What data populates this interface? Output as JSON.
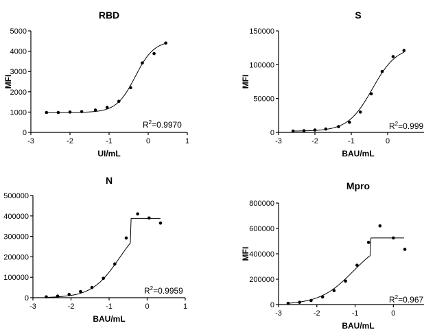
{
  "chart_data": [
    {
      "type": "scatter",
      "title": "RBD",
      "xlabel": "UI/mL",
      "ylabel": "MFI",
      "xlim": [
        -3,
        1
      ],
      "ylim": [
        0,
        5000
      ],
      "xticks": [
        -3,
        -2,
        -1,
        0,
        1
      ],
      "yticks": [
        0,
        1000,
        2000,
        3000,
        4000,
        5000
      ],
      "xtick_labels": [
        "-3",
        "-2",
        "-1",
        "0",
        "1"
      ],
      "ytick_labels": [
        "0",
        "1000",
        "2000",
        "3000",
        "4000",
        "5000"
      ],
      "annotation": {
        "prefix": "R",
        "superscript": "2",
        "text": "=0.9970"
      },
      "series": [
        {
          "x": [
            -2.6,
            -2.3,
            -2.0,
            -1.7,
            -1.35,
            -1.05,
            -0.75,
            -0.45,
            -0.15,
            0.15,
            0.45
          ],
          "y": [
            980,
            980,
            1000,
            1020,
            1100,
            1230,
            1530,
            2200,
            3420,
            3880,
            4400
          ]
        }
      ],
      "fit": {
        "bottom": 980,
        "top": 4520,
        "logEC50": -0.33,
        "hill": 1.8
      },
      "grid": false
    },
    {
      "type": "scatter",
      "title": "S",
      "xlabel": "BAU/mL",
      "ylabel": "MFI",
      "xlim": [
        -3,
        1
      ],
      "ylim": [
        0,
        150000
      ],
      "xticks": [
        -3,
        -2,
        -1,
        0,
        1
      ],
      "yticks": [
        0,
        50000,
        100000,
        150000
      ],
      "xtick_labels": [
        "-3",
        "-2",
        "-1",
        "0",
        ""
      ],
      "ytick_labels": [
        "0",
        "50000",
        "100000",
        "150000"
      ],
      "annotation": {
        "prefix": "R",
        "superscript": "2",
        "text": "=0.999"
      },
      "series": [
        {
          "x": [
            -2.6,
            -2.3,
            -2.0,
            -1.7,
            -1.35,
            -1.05,
            -0.75,
            -0.45,
            -0.15,
            0.15,
            0.45
          ],
          "y": [
            2000,
            2500,
            3500,
            5000,
            8500,
            15000,
            30000,
            57000,
            90000,
            112000,
            121000
          ]
        }
      ],
      "fit": {
        "bottom": 1800,
        "top": 127000,
        "logEC50": -0.42,
        "hill": 1.3
      },
      "grid": false
    },
    {
      "type": "scatter",
      "title": "N",
      "xlabel": "BAU/mL",
      "ylabel": "",
      "xlim": [
        -3,
        1
      ],
      "ylim": [
        0,
        500000
      ],
      "xticks": [
        -3,
        -2,
        -1,
        0,
        1
      ],
      "yticks": [
        0,
        100000,
        200000,
        300000,
        400000,
        500000
      ],
      "xtick_labels": [
        "-3",
        "-2",
        "-1",
        "0",
        "1"
      ],
      "ytick_labels": [
        "0",
        "100000",
        "200000",
        "300000",
        "400000",
        "500000"
      ],
      "annotation": {
        "prefix": "R",
        "superscript": "2",
        "text": "=0.9959"
      },
      "series": [
        {
          "x": [
            -2.65,
            -2.35,
            -2.05,
            -1.75,
            -1.45,
            -1.15,
            -0.85,
            -0.55,
            -0.25,
            0.05,
            0.35
          ],
          "y": [
            4000,
            8000,
            16000,
            30000,
            50000,
            95000,
            165000,
            292000,
            410000,
            390000,
            365000
          ]
        }
      ],
      "fit": {
        "bottom": 0,
        "top": 388000,
        "logEC50": -0.73,
        "hill": 1.2,
        "plateau_after": -0.43,
        "x_end": 0.35
      },
      "grid": false
    },
    {
      "type": "scatter",
      "title": "Mpro",
      "xlabel": "BAU/mL",
      "ylabel": "MFI",
      "xlim": [
        -3,
        0.8
      ],
      "ylim": [
        0,
        800000
      ],
      "xticks": [
        -3,
        -2,
        -1,
        0
      ],
      "yticks": [
        0,
        200000,
        400000,
        600000,
        800000
      ],
      "xtick_labels": [
        "-3",
        "-2",
        "-1",
        "0"
      ],
      "ytick_labels": [
        "0",
        "200000",
        "400000",
        "600000",
        "800000"
      ],
      "annotation": {
        "prefix": "R",
        "superscript": "2",
        "text": "=0.967"
      },
      "series": [
        {
          "x": [
            -2.75,
            -2.45,
            -2.15,
            -1.85,
            -1.55,
            -1.25,
            -0.95,
            -0.65,
            -0.35,
            0.0,
            0.3
          ],
          "y": [
            10000,
            18000,
            32000,
            60000,
            110000,
            185000,
            310000,
            490000,
            620000,
            525000,
            435000
          ]
        }
      ],
      "fit": {
        "bottom": 0,
        "top": 525000,
        "logEC50": -1.05,
        "hill": 1.0,
        "plateau_after": -0.6,
        "x_end": 0.28
      },
      "grid": false
    }
  ]
}
